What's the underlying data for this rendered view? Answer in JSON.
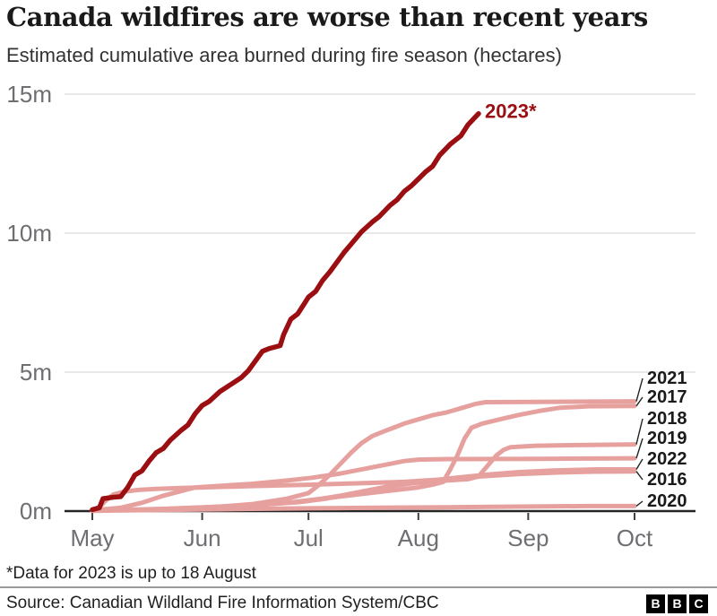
{
  "header": {
    "title": "Canada wildfires are worse than recent years",
    "subtitle": "Estimated cumulative area burned during fire season (hectares)"
  },
  "footnote": "*Data for 2023 is up to 18 August",
  "source": {
    "label": "Source: Canadian Wildland Fire Information System/CBC",
    "logo_letters": [
      "B",
      "B",
      "C"
    ]
  },
  "colors": {
    "highlight": "#9b0f13",
    "muted": "#e6a19f",
    "grid": "#e1e1e1",
    "axis": "#262626",
    "tick": "#3f3f3f",
    "axis_text": "#6e6e73",
    "label_text": "#1a1a1a",
    "connector": "#222222"
  },
  "chart_data": {
    "type": "line",
    "title": "Canada wildfires are worse than recent years",
    "subtitle": "Estimated cumulative area burned during fire season (hectares)",
    "x_unit": "days since 1 May",
    "y_unit": "million hectares",
    "x_axis": {
      "tick_labels": [
        "May",
        "Jun",
        "Jul",
        "Aug",
        "Sep",
        "Oct"
      ],
      "tick_days": [
        0,
        31,
        61,
        92,
        123,
        153
      ],
      "domain_days": [
        0,
        153
      ],
      "grid": false
    },
    "y_axis": {
      "tick_labels": [
        "0m",
        "5m",
        "10m",
        "15m"
      ],
      "tick_values": [
        0,
        5,
        10,
        15
      ],
      "range": [
        0,
        15.5
      ],
      "grid": true
    },
    "legend_position": "end-of-line labels",
    "series": [
      {
        "label": "2023*",
        "highlighted": true,
        "end_value_m_ha": 14.3,
        "points": [
          [
            0,
            0.05
          ],
          [
            2,
            0.12
          ],
          [
            3,
            0.45
          ],
          [
            6,
            0.5
          ],
          [
            8,
            0.52
          ],
          [
            10,
            0.85
          ],
          [
            12,
            1.3
          ],
          [
            14,
            1.45
          ],
          [
            16,
            1.8
          ],
          [
            18,
            2.1
          ],
          [
            20,
            2.25
          ],
          [
            22,
            2.55
          ],
          [
            25,
            2.9
          ],
          [
            27,
            3.1
          ],
          [
            29,
            3.5
          ],
          [
            31,
            3.8
          ],
          [
            33,
            3.95
          ],
          [
            36,
            4.3
          ],
          [
            39,
            4.55
          ],
          [
            42,
            4.8
          ],
          [
            44,
            5.05
          ],
          [
            46,
            5.4
          ],
          [
            48,
            5.75
          ],
          [
            50,
            5.85
          ],
          [
            53,
            5.95
          ],
          [
            54,
            6.35
          ],
          [
            56,
            6.9
          ],
          [
            58,
            7.1
          ],
          [
            60,
            7.5
          ],
          [
            61,
            7.7
          ],
          [
            63,
            7.9
          ],
          [
            65,
            8.3
          ],
          [
            67,
            8.6
          ],
          [
            69,
            8.95
          ],
          [
            71,
            9.3
          ],
          [
            73,
            9.6
          ],
          [
            76,
            10.05
          ],
          [
            79,
            10.4
          ],
          [
            81,
            10.6
          ],
          [
            84,
            11.0
          ],
          [
            86,
            11.2
          ],
          [
            88,
            11.5
          ],
          [
            90,
            11.7
          ],
          [
            92,
            11.95
          ],
          [
            94,
            12.2
          ],
          [
            96,
            12.4
          ],
          [
            98,
            12.8
          ],
          [
            101,
            13.2
          ],
          [
            104,
            13.5
          ],
          [
            106,
            13.9
          ],
          [
            109,
            14.3
          ]
        ]
      },
      {
        "label": "2021",
        "highlighted": false,
        "end_value_m_ha": 3.95,
        "points": [
          [
            0,
            0.02
          ],
          [
            15,
            0.05
          ],
          [
            30,
            0.1
          ],
          [
            45,
            0.25
          ],
          [
            55,
            0.45
          ],
          [
            61,
            0.65
          ],
          [
            64,
            0.95
          ],
          [
            67,
            1.3
          ],
          [
            70,
            1.7
          ],
          [
            73,
            2.1
          ],
          [
            76,
            2.45
          ],
          [
            79,
            2.7
          ],
          [
            82,
            2.85
          ],
          [
            85,
            3.0
          ],
          [
            88,
            3.15
          ],
          [
            92,
            3.3
          ],
          [
            96,
            3.45
          ],
          [
            100,
            3.55
          ],
          [
            104,
            3.7
          ],
          [
            108,
            3.85
          ],
          [
            111,
            3.92
          ],
          [
            125,
            3.93
          ],
          [
            153,
            3.95
          ]
        ]
      },
      {
        "label": "2017",
        "highlighted": false,
        "end_value_m_ha": 3.78,
        "points": [
          [
            0,
            0.02
          ],
          [
            20,
            0.08
          ],
          [
            40,
            0.18
          ],
          [
            55,
            0.3
          ],
          [
            65,
            0.45
          ],
          [
            75,
            0.6
          ],
          [
            85,
            0.75
          ],
          [
            92,
            0.85
          ],
          [
            96,
            0.95
          ],
          [
            99,
            1.05
          ],
          [
            101,
            1.5
          ],
          [
            103,
            2.0
          ],
          [
            105,
            2.6
          ],
          [
            107,
            3.0
          ],
          [
            110,
            3.15
          ],
          [
            115,
            3.3
          ],
          [
            120,
            3.45
          ],
          [
            126,
            3.6
          ],
          [
            132,
            3.72
          ],
          [
            140,
            3.77
          ],
          [
            153,
            3.78
          ]
        ]
      },
      {
        "label": "2018",
        "highlighted": false,
        "end_value_m_ha": 2.4,
        "points": [
          [
            0,
            0.02
          ],
          [
            25,
            0.08
          ],
          [
            45,
            0.2
          ],
          [
            60,
            0.35
          ],
          [
            70,
            0.55
          ],
          [
            80,
            0.8
          ],
          [
            90,
            1.0
          ],
          [
            100,
            1.1
          ],
          [
            106,
            1.15
          ],
          [
            109,
            1.25
          ],
          [
            112,
            1.7
          ],
          [
            114,
            2.0
          ],
          [
            116,
            2.2
          ],
          [
            118,
            2.3
          ],
          [
            125,
            2.35
          ],
          [
            140,
            2.38
          ],
          [
            153,
            2.4
          ]
        ]
      },
      {
        "label": "2019",
        "highlighted": false,
        "end_value_m_ha": 1.9,
        "points": [
          [
            0,
            0.03
          ],
          [
            8,
            0.12
          ],
          [
            14,
            0.3
          ],
          [
            20,
            0.55
          ],
          [
            25,
            0.72
          ],
          [
            29,
            0.85
          ],
          [
            35,
            0.9
          ],
          [
            45,
            0.98
          ],
          [
            55,
            1.1
          ],
          [
            62,
            1.2
          ],
          [
            70,
            1.35
          ],
          [
            78,
            1.55
          ],
          [
            84,
            1.7
          ],
          [
            88,
            1.8
          ],
          [
            92,
            1.85
          ],
          [
            100,
            1.87
          ],
          [
            125,
            1.88
          ],
          [
            153,
            1.9
          ]
        ]
      },
      {
        "label": "2022",
        "highlighted": false,
        "end_value_m_ha": 1.5,
        "points": [
          [
            0,
            0.02
          ],
          [
            15,
            0.05
          ],
          [
            30,
            0.12
          ],
          [
            45,
            0.22
          ],
          [
            58,
            0.32
          ],
          [
            66,
            0.45
          ],
          [
            72,
            0.6
          ],
          [
            78,
            0.75
          ],
          [
            84,
            0.9
          ],
          [
            90,
            1.0
          ],
          [
            96,
            1.1
          ],
          [
            104,
            1.22
          ],
          [
            112,
            1.32
          ],
          [
            120,
            1.4
          ],
          [
            130,
            1.46
          ],
          [
            142,
            1.5
          ],
          [
            153,
            1.5
          ]
        ]
      },
      {
        "label": "2016",
        "highlighted": false,
        "end_value_m_ha": 1.43,
        "points": [
          [
            0,
            0.03
          ],
          [
            2,
            0.15
          ],
          [
            4,
            0.4
          ],
          [
            6,
            0.6
          ],
          [
            9,
            0.7
          ],
          [
            13,
            0.76
          ],
          [
            18,
            0.8
          ],
          [
            25,
            0.83
          ],
          [
            31,
            0.85
          ],
          [
            45,
            0.9
          ],
          [
            61,
            0.95
          ],
          [
            75,
            1.0
          ],
          [
            88,
            1.05
          ],
          [
            100,
            1.15
          ],
          [
            110,
            1.25
          ],
          [
            120,
            1.33
          ],
          [
            132,
            1.39
          ],
          [
            142,
            1.42
          ],
          [
            153,
            1.43
          ]
        ]
      },
      {
        "label": "2020",
        "highlighted": false,
        "end_value_m_ha": 0.18,
        "points": [
          [
            0,
            0.01
          ],
          [
            20,
            0.04
          ],
          [
            40,
            0.07
          ],
          [
            61,
            0.1
          ],
          [
            80,
            0.12
          ],
          [
            100,
            0.14
          ],
          [
            120,
            0.16
          ],
          [
            140,
            0.18
          ],
          [
            153,
            0.18
          ]
        ]
      }
    ]
  }
}
